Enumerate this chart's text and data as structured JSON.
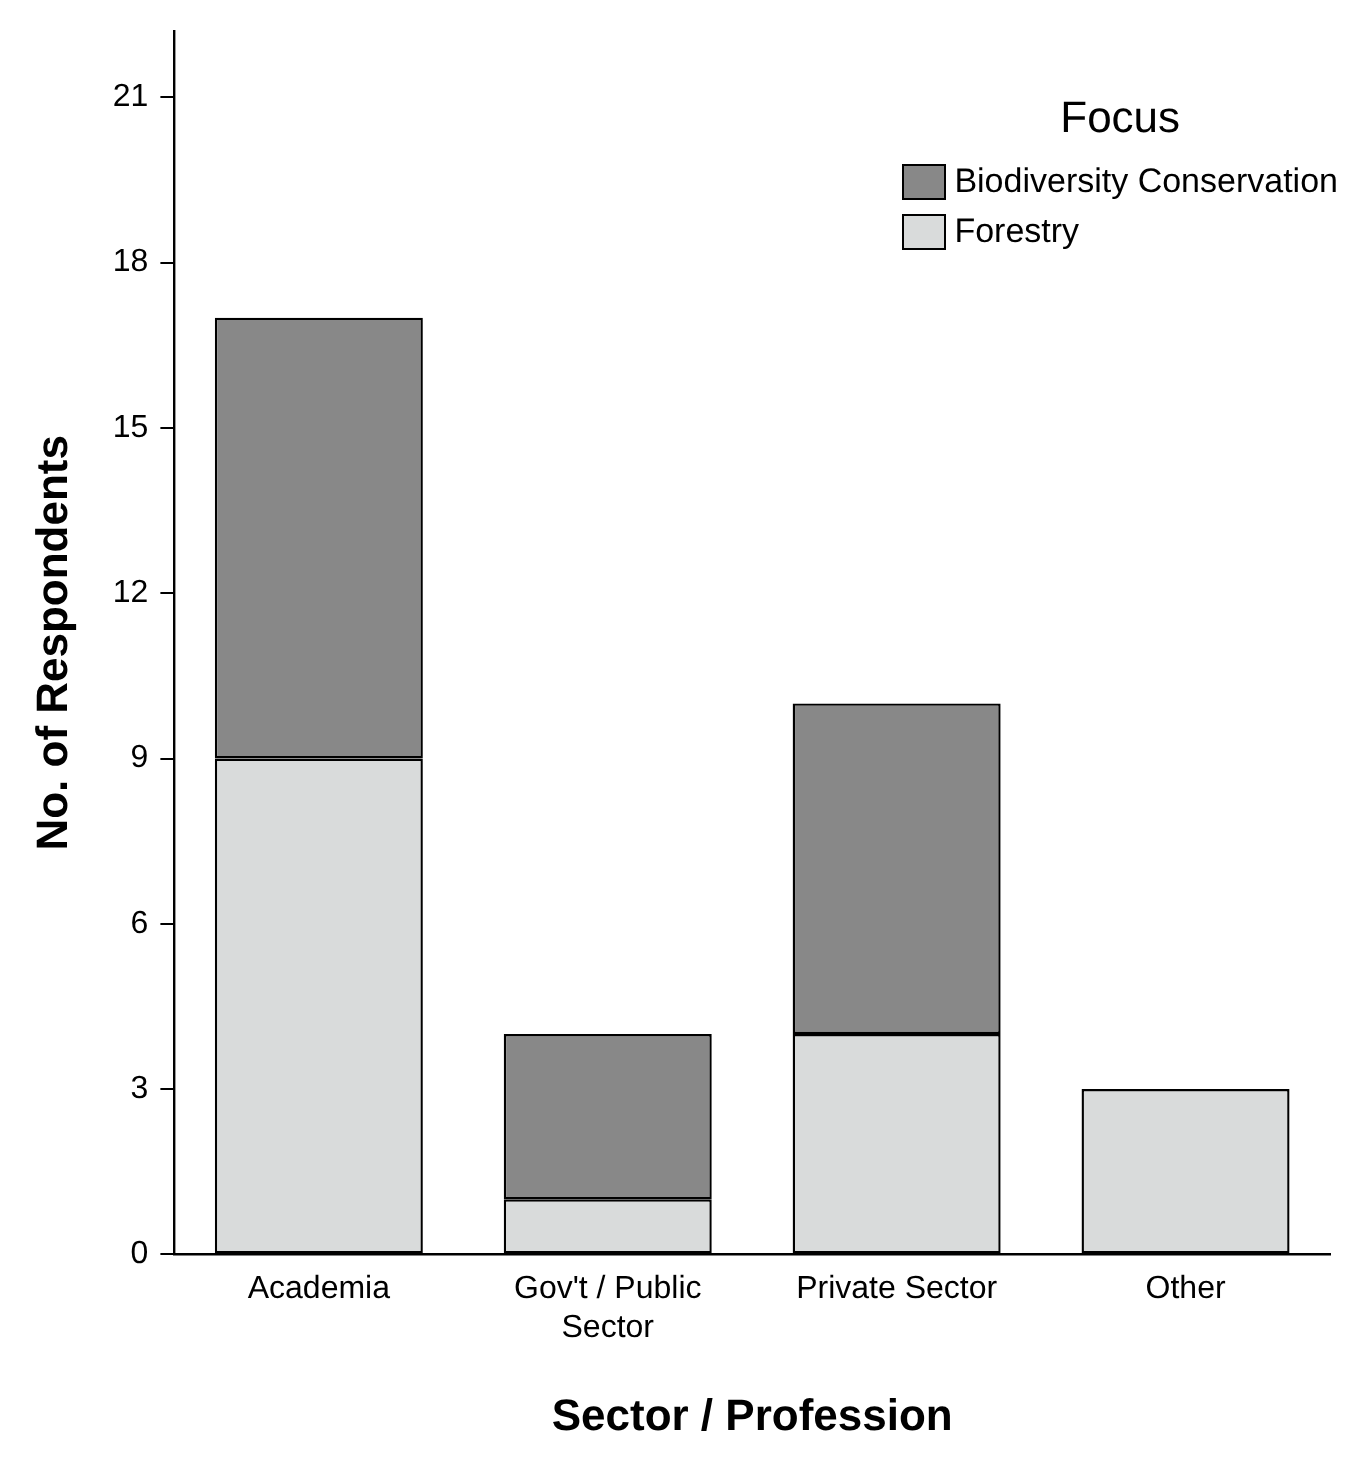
{
  "chart_data": {
    "type": "bar",
    "stacked": true,
    "xlabel": "Sector / Profession",
    "ylabel": "No. of Respondents",
    "legend_title": "Focus",
    "legend": "top right",
    "grid": false,
    "categories": [
      "Academia",
      "Gov't / Public Sector",
      "Private Sector",
      "Other"
    ],
    "series": [
      {
        "name": "Forestry",
        "color": "#d9dbdb",
        "values": [
          9,
          1,
          4,
          3
        ]
      },
      {
        "name": "Biodiversity Conservation",
        "color": "#888888",
        "values": [
          8,
          3,
          6,
          0
        ]
      }
    ],
    "ylim": [
      0,
      22.2
    ],
    "yticks": [
      0,
      3,
      6,
      9,
      12,
      15,
      18,
      21
    ]
  }
}
